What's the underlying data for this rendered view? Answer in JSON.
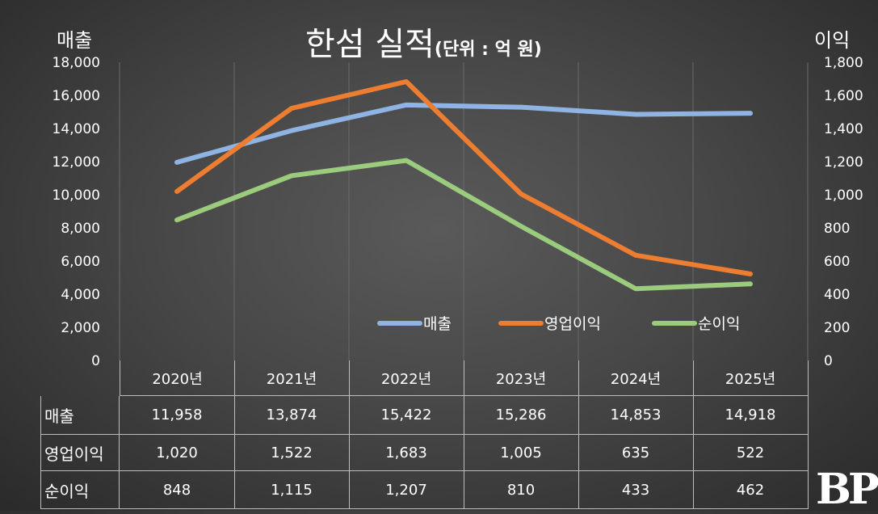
{
  "chart_data": {
    "type": "line",
    "title": "한섬 실적",
    "unit_note": "(단위 : 억 원)",
    "ylabel": "매출",
    "ylabel_right": "이익",
    "categories": [
      "2020년",
      "2021년",
      "2022년",
      "2023년",
      "2024년",
      "2025년"
    ],
    "ylim": [
      0,
      18000
    ],
    "ylim_right": [
      0,
      1800
    ],
    "yticks": [
      "0",
      "2,000",
      "4,000",
      "6,000",
      "8,000",
      "10,000",
      "12,000",
      "14,000",
      "16,000",
      "18,000"
    ],
    "yticks_right": [
      "0",
      "200",
      "400",
      "600",
      "800",
      "1,000",
      "1,200",
      "1,400",
      "1,600",
      "1,800"
    ],
    "legend_position": "inside-bottom-right",
    "grid": "vertical",
    "series": [
      {
        "name": "매출",
        "axis": "left",
        "color": "#8fb4e3",
        "values": [
          11958,
          13874,
          15422,
          15286,
          14853,
          14918
        ],
        "labels": [
          "11,958",
          "13,874",
          "15,422",
          "15,286",
          "14,853",
          "14,918"
        ]
      },
      {
        "name": "영업이익",
        "axis": "right",
        "color": "#ed7d31",
        "values": [
          1020,
          1522,
          1683,
          1005,
          635,
          522
        ],
        "labels": [
          "1,020",
          "1,522",
          "1,683",
          "1,005",
          "635",
          "522"
        ]
      },
      {
        "name": "순이익",
        "axis": "right",
        "color": "#9bcb7c",
        "values": [
          848,
          1115,
          1207,
          810,
          433,
          462
        ],
        "labels": [
          "848",
          "1,115",
          "1,207",
          "810",
          "433",
          "462"
        ]
      }
    ]
  },
  "logo": "BP"
}
